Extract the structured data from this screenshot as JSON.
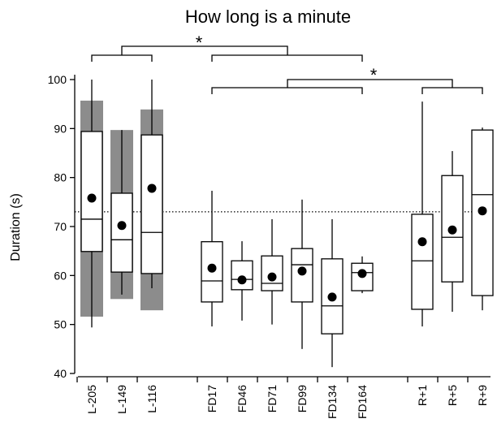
{
  "chart_data": {
    "type": "box",
    "title": "How long is a minute",
    "y_label": "Duration (s)",
    "categories": [
      "L-205",
      "L-149",
      "L-116",
      "FD17",
      "FD46",
      "FD71",
      "FD99",
      "FD134",
      "FD164",
      "R+1",
      "R+5",
      "R+9"
    ],
    "boxes": [
      {
        "whisker_low": 49.4,
        "q1": 64.9,
        "median": 71.5,
        "q3": 89.4,
        "whisker_high": 100,
        "mean": 75.8,
        "band": [
          51.6,
          95.7
        ]
      },
      {
        "whisker_low": 56.1,
        "q1": 60.7,
        "median": 67.3,
        "q3": 76.8,
        "whisker_high": 89.7,
        "mean": 70.2,
        "band": [
          55.2,
          89.7
        ]
      },
      {
        "whisker_low": 57.4,
        "q1": 60.4,
        "median": 68.8,
        "q3": 88.7,
        "whisker_high": 100,
        "mean": 77.8,
        "band": [
          52.9,
          93.9
        ]
      },
      {
        "whisker_low": 49.6,
        "q1": 54.6,
        "median": 58.9,
        "q3": 66.9,
        "whisker_high": 77.3,
        "mean": 61.5
      },
      {
        "whisker_low": 50.8,
        "q1": 57.1,
        "median": 59.2,
        "q3": 63.0,
        "whisker_high": 67.0,
        "mean": 59.1
      },
      {
        "whisker_low": 50.0,
        "q1": 56.9,
        "median": 58.4,
        "q3": 64.0,
        "whisker_high": 71.5,
        "mean": 59.7
      },
      {
        "whisker_low": 45.0,
        "q1": 54.6,
        "median": 62.2,
        "q3": 65.5,
        "whisker_high": 75.5,
        "mean": 60.9
      },
      {
        "whisker_low": 41.3,
        "q1": 48.1,
        "median": 53.8,
        "q3": 63.4,
        "whisker_high": 71.5,
        "mean": 55.6
      },
      {
        "whisker_low": 56.4,
        "q1": 56.9,
        "median": 60.6,
        "q3": 62.5,
        "whisker_high": 63.9,
        "mean": 60.4
      },
      {
        "whisker_low": 49.6,
        "q1": 53.1,
        "median": 63.0,
        "q3": 72.5,
        "whisker_high": 95.5,
        "mean": 66.9
      },
      {
        "whisker_low": 52.6,
        "q1": 58.7,
        "median": 67.8,
        "q3": 80.4,
        "whisker_high": 85.4,
        "mean": 69.3
      },
      {
        "whisker_low": 52.9,
        "q1": 55.9,
        "median": 76.5,
        "q3": 89.7,
        "whisker_high": 90.2,
        "mean": 73.2
      }
    ],
    "reference_line": 73.0,
    "annotations": [
      "*",
      "*"
    ],
    "ylim": [
      40,
      100
    ],
    "yticks": [
      40,
      50,
      60,
      70,
      80,
      90,
      100
    ],
    "band_color": "#8c8c8c",
    "box_color": "#000000"
  }
}
